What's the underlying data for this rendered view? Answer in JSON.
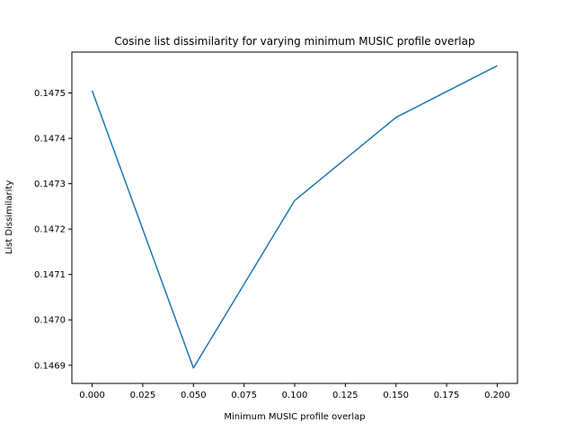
{
  "chart_data": {
    "type": "line",
    "title": "Cosine list dissimilarity for varying minimum MUSIC profile overlap",
    "xlabel": "Minimum MUSIC profile overlap",
    "ylabel": "List Dissimilarity",
    "x": [
      0.0,
      0.05,
      0.1,
      0.15,
      0.2
    ],
    "series": [
      {
        "name": "List Dissimilarity",
        "color": "#1f77b4",
        "values": [
          0.147505,
          0.146894,
          0.147263,
          0.147446,
          0.14756
        ]
      }
    ],
    "xlim": [
      -0.01,
      0.21
    ],
    "ylim": [
      0.14686,
      0.14759
    ],
    "xticks": [
      0.0,
      0.025,
      0.05,
      0.075,
      0.1,
      0.125,
      0.15,
      0.175,
      0.2
    ],
    "xtick_labels": [
      "0.000",
      "0.025",
      "0.050",
      "0.075",
      "0.100",
      "0.125",
      "0.150",
      "0.175",
      "0.200"
    ],
    "yticks": [
      0.1469,
      0.147,
      0.1471,
      0.1472,
      0.1473,
      0.1474,
      0.1475
    ],
    "ytick_labels": [
      "0.1469",
      "0.1470",
      "0.1471",
      "0.1472",
      "0.1473",
      "0.1474",
      "0.1475"
    ],
    "grid": false,
    "legend": "none"
  }
}
